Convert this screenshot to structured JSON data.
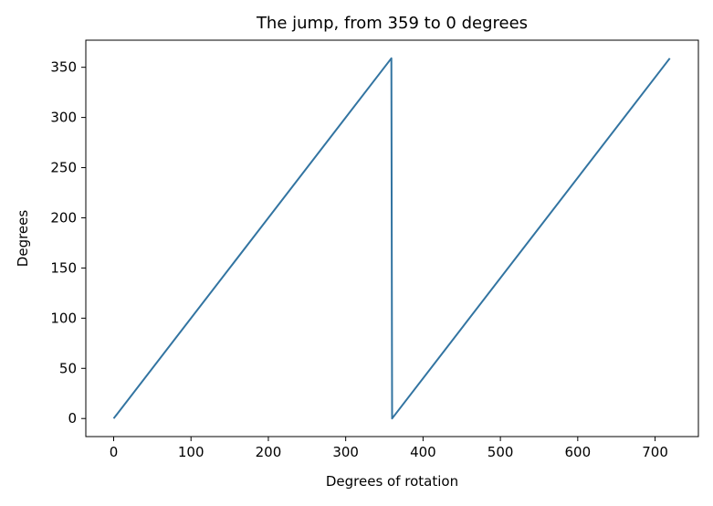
{
  "chart_data": {
    "type": "line",
    "title": "The jump, from 359 to 0 degrees",
    "xlabel": "Degrees of rotation",
    "ylabel": "Degrees",
    "xlim": [
      -36,
      756
    ],
    "ylim": [
      -18,
      377
    ],
    "xticks": [
      0,
      100,
      200,
      300,
      400,
      500,
      600,
      700
    ],
    "yticks": [
      0,
      50,
      100,
      150,
      200,
      250,
      300,
      350
    ],
    "grid": false,
    "series": [
      {
        "color": "#3274a1",
        "x": [
          0,
          359,
          360,
          719
        ],
        "y": [
          0,
          359,
          0,
          359
        ]
      }
    ]
  }
}
